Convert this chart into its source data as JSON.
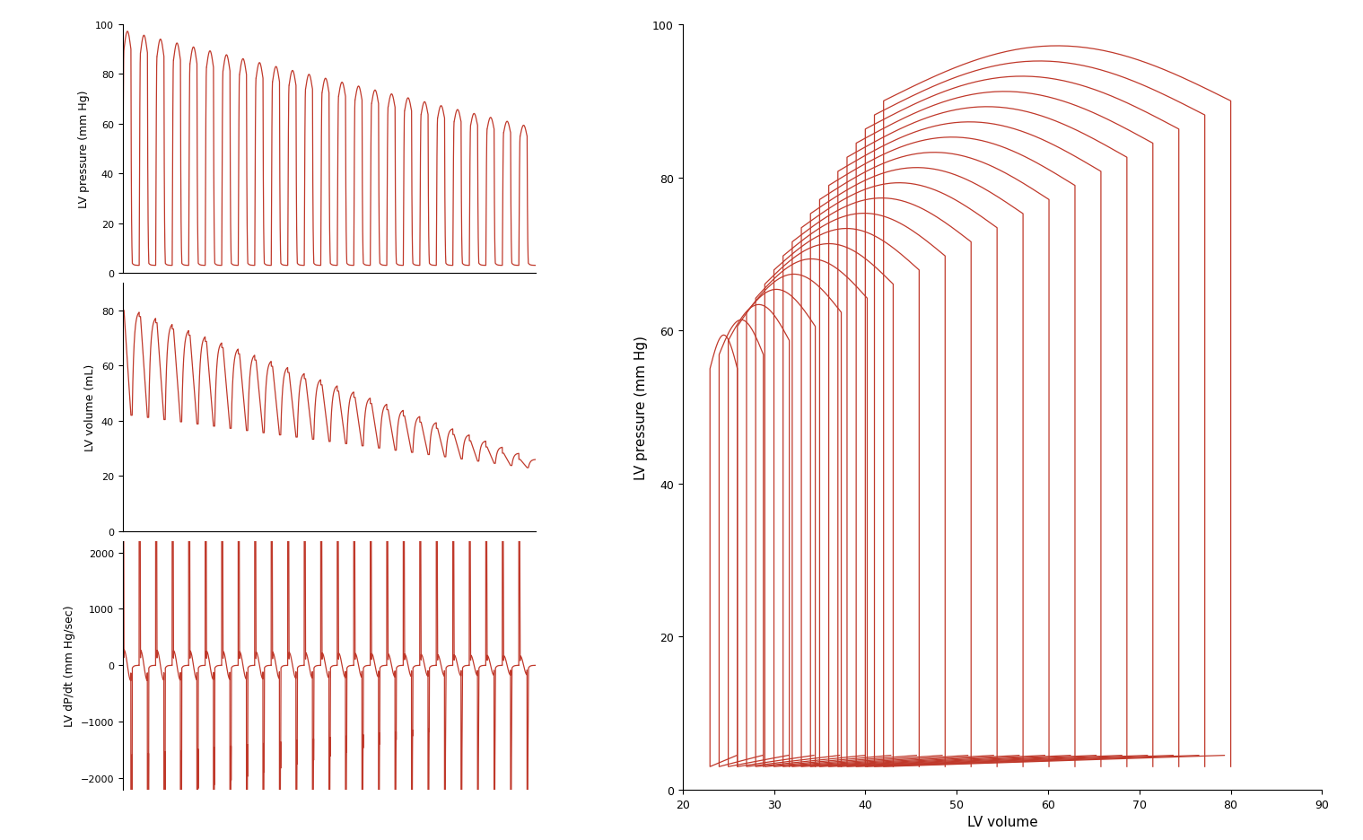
{
  "line_color": "#c0392b",
  "line_width": 0.9,
  "background_color": "#ffffff",
  "left_panel": {
    "pressure_ylim": [
      0,
      100
    ],
    "pressure_yticks": [
      0,
      20,
      40,
      60,
      80,
      100
    ],
    "pressure_ylabel": "LV pressure (mm Hg)",
    "volume_ylim": [
      0,
      90
    ],
    "volume_yticks": [
      0,
      20,
      40,
      60,
      80
    ],
    "volume_ylabel": "LV volume (mL)",
    "dpdt_ylim": [
      -2200,
      2200
    ],
    "dpdt_yticks": [
      -2000,
      -1000,
      0,
      1000,
      2000
    ],
    "dpdt_ylabel": "LV dP/dt (mm Hg/sec)"
  },
  "right_panel": {
    "xlim": [
      20,
      90
    ],
    "ylim": [
      0,
      100
    ],
    "xticks": [
      20,
      30,
      40,
      50,
      60,
      70,
      80,
      90
    ],
    "yticks": [
      0,
      20,
      40,
      60,
      80,
      100
    ],
    "xlabel": "LV volume",
    "ylabel": "LV pressure (mm Hg)",
    "n_loops": 20
  },
  "n_beats": 25,
  "pts_per_beat": 200
}
